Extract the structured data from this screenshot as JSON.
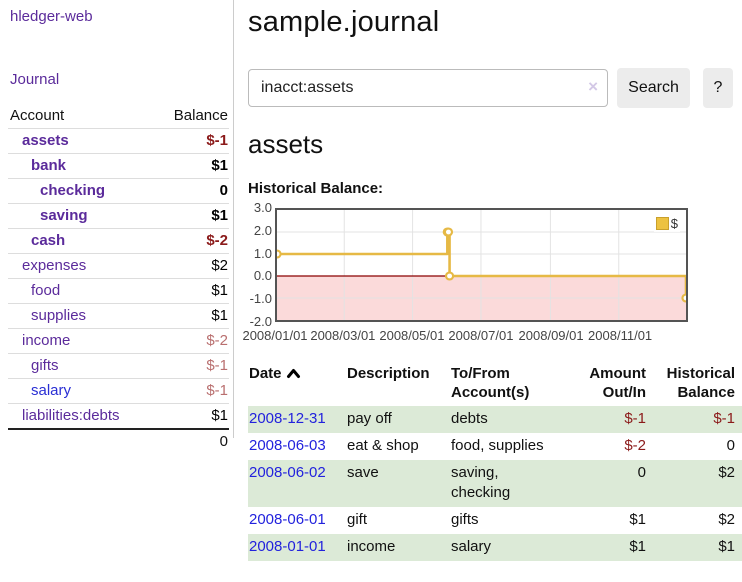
{
  "app": {
    "brand": "hledger-web",
    "nav_journal": "Journal"
  },
  "sidebar": {
    "header": {
      "account": "Account",
      "balance": "Balance"
    },
    "rows": [
      {
        "label": "assets",
        "depth": 1,
        "bold": true,
        "link": "purple",
        "value": "$-1",
        "vclass": "neg"
      },
      {
        "label": "bank",
        "depth": 2,
        "bold": true,
        "link": "purple",
        "value": "$1",
        "vclass": "pos"
      },
      {
        "label": "checking",
        "depth": 3,
        "bold": true,
        "link": "purple",
        "value": "0",
        "vclass": "pos"
      },
      {
        "label": "saving",
        "depth": 3,
        "bold": true,
        "link": "purple",
        "value": "$1",
        "vclass": "pos"
      },
      {
        "label": "cash",
        "depth": 2,
        "bold": true,
        "link": "purple",
        "value": "$-2",
        "vclass": "neg"
      },
      {
        "label": "expenses",
        "depth": 1,
        "bold": false,
        "link": "purple",
        "value": "$2",
        "vclass": "pos"
      },
      {
        "label": "food",
        "depth": 2,
        "bold": false,
        "link": "purple",
        "value": "$1",
        "vclass": "pos"
      },
      {
        "label": "supplies",
        "depth": 2,
        "bold": false,
        "link": "purple",
        "value": "$1",
        "vclass": "pos"
      },
      {
        "label": "income",
        "depth": 1,
        "bold": false,
        "link": "purple",
        "value": "$-2",
        "vclass": "negmuted"
      },
      {
        "label": "gifts",
        "depth": 2,
        "bold": false,
        "link": "purple",
        "value": "$-1",
        "vclass": "negmuted"
      },
      {
        "label": "salary",
        "depth": 2,
        "bold": false,
        "link": "blue",
        "value": "$-1",
        "vclass": "negmuted"
      },
      {
        "label": "liabilities:debts",
        "depth": 1,
        "bold": false,
        "link": "purple",
        "value": "$1",
        "vclass": "pos"
      }
    ],
    "total": "0"
  },
  "main": {
    "title": "sample.journal",
    "search": {
      "value": "inacct:assets",
      "clear_icon": "×",
      "button": "Search",
      "help": "?"
    },
    "heading": "assets",
    "chart_label": "Historical Balance:"
  },
  "chart_data": {
    "type": "line",
    "title": "Historical Balance:",
    "series": [
      {
        "name": "$",
        "color": "#e6b945",
        "style": "steps",
        "points": [
          [
            "2008-01-01",
            1
          ],
          [
            "2008-06-01",
            2
          ],
          [
            "2008-06-02",
            2
          ],
          [
            "2008-06-03",
            0
          ],
          [
            "2008-12-31",
            -1
          ]
        ]
      }
    ],
    "xlim": [
      "2008-01-01",
      "2008-12-31"
    ],
    "ylim": [
      -2,
      3
    ],
    "y_ticks": [
      "3.0",
      "2.0",
      "1.0",
      "0.0",
      "-1.0",
      "-2.0"
    ],
    "x_ticks": [
      "2008/01/01",
      "2008/03/01",
      "2008/05/01",
      "2008/07/01",
      "2008/09/01",
      "2008/11/01"
    ],
    "grid": true,
    "negative_region_fill": "#fbdada",
    "zero_line_color": "#8b0000",
    "legend": {
      "label": "$",
      "position": "top-right",
      "swatch_color": "#edc240"
    }
  },
  "register": {
    "headers": {
      "date": "Date",
      "description": "Description",
      "accounts": "To/From Account(s)",
      "amount": "Amount Out/In",
      "balance": "Historical Balance"
    },
    "rows": [
      {
        "date": "2008-12-31",
        "description": "pay off",
        "accounts": "debts",
        "amount": "$-1",
        "amount_neg": true,
        "balance": "$-1",
        "balance_neg": true,
        "shade": true
      },
      {
        "date": "2008-06-03",
        "description": "eat & shop",
        "accounts": "food, supplies",
        "amount": "$-2",
        "amount_neg": true,
        "balance": "0",
        "balance_neg": false,
        "shade": false
      },
      {
        "date": "2008-06-02",
        "description": "save",
        "accounts": "saving, checking",
        "amount": "0",
        "amount_neg": false,
        "balance": "$2",
        "balance_neg": false,
        "shade": true
      },
      {
        "date": "2008-06-01",
        "description": "gift",
        "accounts": "gifts",
        "amount": "$1",
        "amount_neg": false,
        "balance": "$2",
        "balance_neg": false,
        "shade": false
      },
      {
        "date": "2008-01-01",
        "description": "income",
        "accounts": "salary",
        "amount": "$1",
        "amount_neg": false,
        "balance": "$1",
        "balance_neg": false,
        "shade": true
      }
    ]
  }
}
